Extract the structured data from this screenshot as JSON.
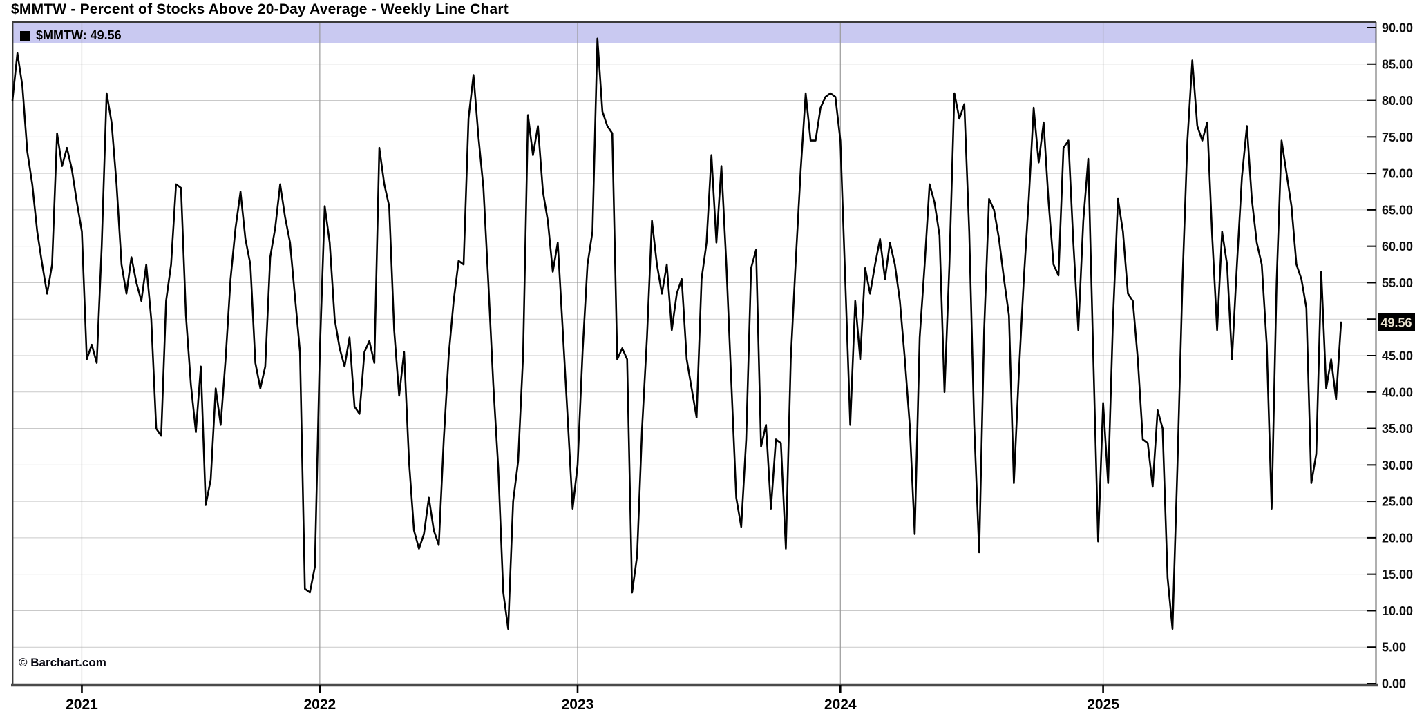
{
  "watermark": "© Barchart.com",
  "legend": {
    "label": "$MMTW: 49.56",
    "swatch_color": "#000000",
    "bar_color": "#c9c9f1"
  },
  "chart_data": {
    "type": "line",
    "title": "$MMTW - Percent of Stocks Above 20-Day Average - Weekly Line Chart",
    "series_name": "$MMTW",
    "last_value": 49.56,
    "last_value_label": "49.56",
    "ylim": [
      0,
      90
    ],
    "grid": true,
    "legend_position": "top",
    "line_color": "#000000",
    "y_tick_values": [
      0,
      5,
      10,
      15,
      20,
      25,
      30,
      35,
      40,
      45,
      50,
      55,
      60,
      65,
      70,
      75,
      80,
      85,
      90
    ],
    "y_tick_labels": [
      "0.00",
      "5.00",
      "10.00",
      "15.00",
      "20.00",
      "25.00",
      "30.00",
      "35.00",
      "40.00",
      "45.00",
      "",
      "55.00",
      "60.00",
      "65.00",
      "70.00",
      "75.00",
      "80.00",
      "85.00",
      "90.00"
    ],
    "x_tick_labels": [
      "2021",
      "2022",
      "2023",
      "2024",
      "2025"
    ],
    "year_week_indices": [
      14,
      62,
      114,
      167,
      220
    ],
    "weekly_values": [
      80,
      86.5,
      82,
      73,
      68.5,
      62,
      57.5,
      53.5,
      57.5,
      75.5,
      71,
      73.5,
      70.5,
      66,
      62,
      44.5,
      46.5,
      44,
      60,
      81,
      77,
      68.5,
      57.5,
      53.5,
      58.5,
      55,
      52.5,
      57.5,
      50,
      35,
      34,
      52.5,
      57.5,
      68.5,
      68,
      50.5,
      41,
      34.5,
      43.5,
      24.5,
      28,
      40.5,
      35.5,
      44.5,
      55.5,
      62.5,
      67.5,
      61,
      57.5,
      44,
      40.5,
      43.5,
      58.5,
      62.5,
      68.5,
      64,
      60.5,
      53,
      45.5,
      13,
      12.5,
      16,
      45.5,
      65.5,
      60.5,
      50,
      46,
      43.5,
      47.5,
      38,
      37,
      45.5,
      47,
      44,
      73.5,
      68.5,
      65.5,
      48.5,
      39.5,
      45.5,
      30.5,
      21,
      18.5,
      20.5,
      25.5,
      21,
      19,
      33.5,
      45,
      52.5,
      58,
      57.5,
      77.5,
      83.5,
      75,
      68,
      55,
      41,
      29.5,
      12.5,
      7.5,
      25,
      30.5,
      45,
      78,
      72.5,
      76.5,
      67.5,
      63.5,
      56.5,
      60.5,
      48.5,
      36.5,
      24,
      30,
      45.5,
      57.5,
      62,
      88.5,
      78.5,
      76.5,
      75.5,
      44.5,
      46,
      44.5,
      12.5,
      17.5,
      35,
      47.5,
      63.5,
      57.5,
      53.5,
      57.5,
      48.5,
      53.5,
      55.5,
      44.5,
      40.5,
      36.5,
      55.5,
      60.5,
      72.5,
      60.5,
      71,
      57.5,
      41.5,
      25.5,
      21.5,
      33.5,
      57,
      59.5,
      32.5,
      35.5,
      24,
      33.5,
      33,
      18.5,
      44.5,
      58,
      70.5,
      81,
      74.5,
      74.5,
      79,
      80.5,
      81,
      80.5,
      74.5,
      55,
      35.5,
      52.5,
      44.5,
      57,
      53.5,
      57.5,
      61,
      55.5,
      60.5,
      57.5,
      52.5,
      44.5,
      35.5,
      20.5,
      47.5,
      57.5,
      68.5,
      66,
      61.5,
      40,
      57.5,
      81,
      77.5,
      79.5,
      62,
      35.5,
      18,
      48.5,
      66.5,
      65,
      61,
      55.5,
      50.5,
      27.5,
      42.5,
      55.5,
      66.5,
      79,
      71.5,
      77,
      66,
      57.5,
      56,
      73.5,
      74.5,
      60.5,
      48.5,
      63.5,
      72,
      45.5,
      19.5,
      38.5,
      27.5,
      50,
      66.5,
      62,
      53.5,
      52.5,
      44.5,
      33.5,
      33,
      27,
      37.5,
      35,
      14.5,
      7.5,
      30,
      55,
      74.5,
      85.5,
      76.5,
      74.5,
      77,
      61.5,
      48.5,
      62,
      57.5,
      44.5,
      57.5,
      69.5,
      76.5,
      66.5,
      60.5,
      57.5,
      46.5,
      24,
      55,
      74.5,
      70,
      65.5,
      57.5,
      55.5,
      51.5,
      27.5,
      31.5,
      56.5,
      40.5,
      44.5,
      39,
      49.56
    ]
  }
}
